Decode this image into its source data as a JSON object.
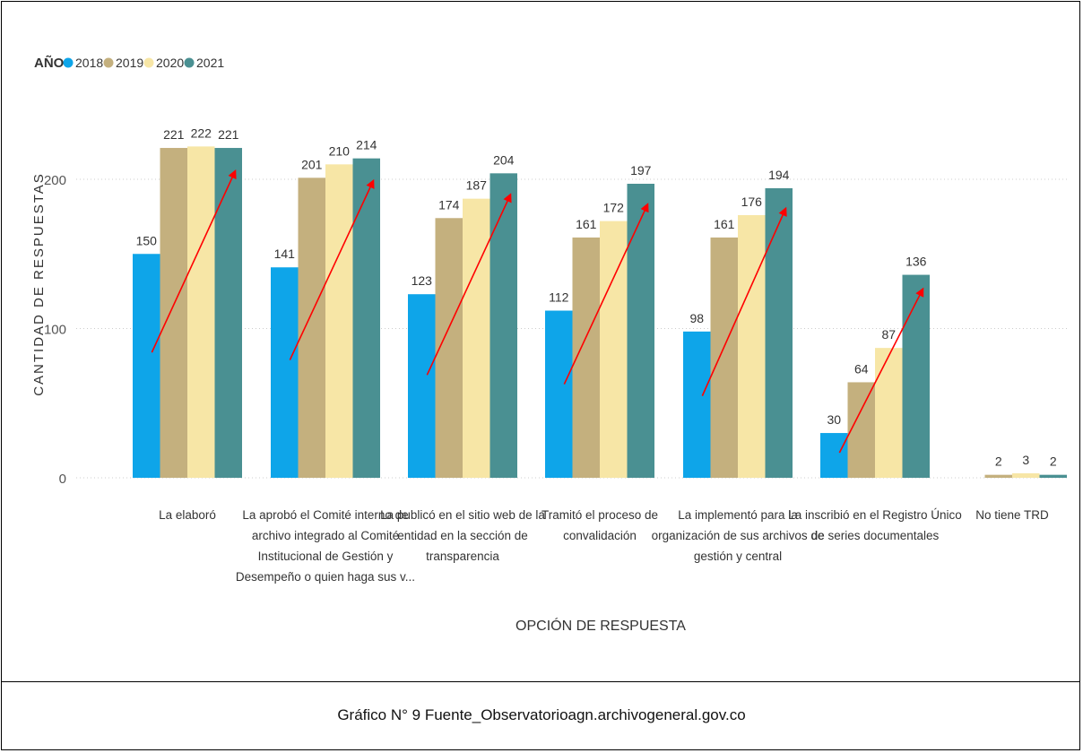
{
  "chart_data": {
    "type": "bar",
    "legend_title": "AÑO",
    "legend_position": "top-left",
    "xlabel": "OPCIÓN DE RESPUESTA",
    "ylabel": "CANTIDAD DE RESPUESTAS",
    "ylim": [
      0,
      240
    ],
    "yticks": [
      "0",
      "100",
      "200"
    ],
    "grid": true,
    "categories": [
      [
        "La elaboró"
      ],
      [
        "La aprobó el Comité interno de",
        "archivo integrado al Comité",
        "Institucional de Gestión y",
        "Desempeño o quien haga sus v..."
      ],
      [
        "La publicó en el sitio web de la",
        "entidad en la sección de",
        "transparencia"
      ],
      [
        "Tramitó el proceso de",
        "convalidación"
      ],
      [
        "La implementó para la",
        "organización de sus archivos de",
        "gestión y central"
      ],
      [
        "La inscribió en el Registro Único",
        "de series documentales"
      ],
      [
        "No tiene TRD"
      ]
    ],
    "series": [
      {
        "name": "2018",
        "color": "#0ea5e9",
        "values": [
          150,
          141,
          123,
          112,
          98,
          30,
          null
        ]
      },
      {
        "name": "2019",
        "color": "#c4b07e",
        "values": [
          221,
          201,
          174,
          161,
          161,
          64,
          2
        ]
      },
      {
        "name": "2020",
        "color": "#f7e6a6",
        "values": [
          222,
          210,
          187,
          172,
          176,
          87,
          3
        ]
      },
      {
        "name": "2021",
        "color": "#4a9092",
        "values": [
          221,
          214,
          204,
          197,
          194,
          136,
          2
        ]
      }
    ],
    "annotations": "red trend arrows rising from 2018 to 2021 bars in first six groups"
  },
  "caption": "Gráfico N° 9 Fuente_Observatorioagn.archivogeneral.gov.co",
  "colors": {
    "arrow": "#ff0000",
    "grid": "#cccccc",
    "label": "#333333"
  }
}
